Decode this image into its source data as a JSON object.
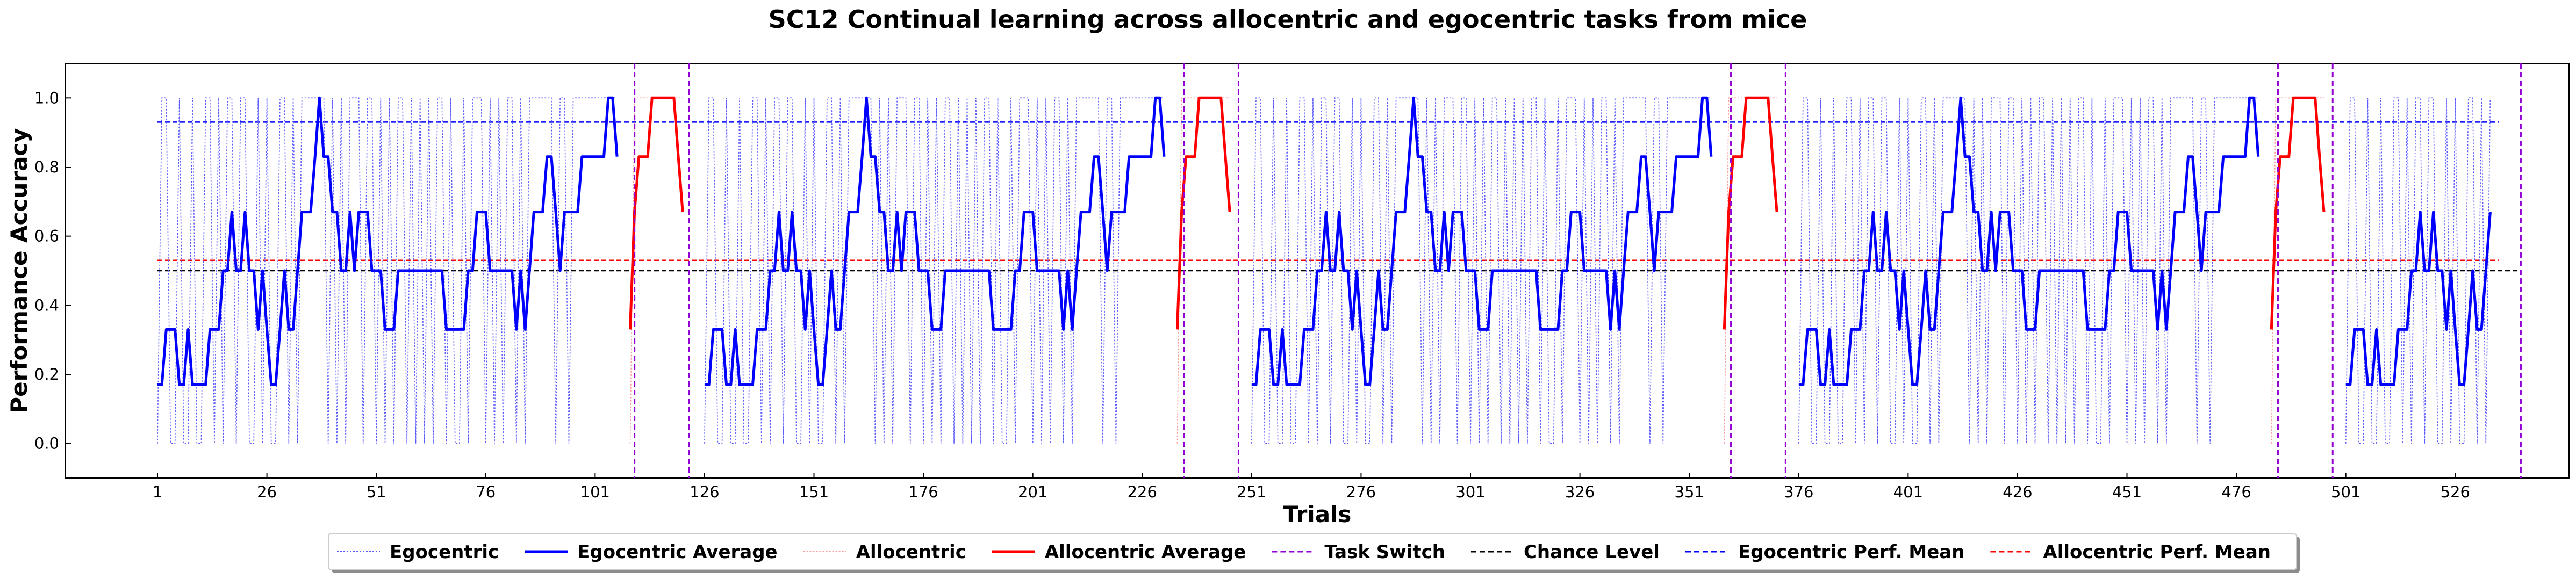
{
  "chart_data": {
    "type": "line",
    "title": "SC12 Continual learning across allocentric and egocentric tasks from mice",
    "xlabel": "Trials",
    "ylabel": "Performance Accuracy",
    "xlim": [
      -20,
      552
    ],
    "ylim": [
      -0.1,
      1.1
    ],
    "xticks": [
      1,
      26,
      51,
      76,
      101,
      126,
      151,
      176,
      201,
      226,
      251,
      276,
      301,
      326,
      351,
      376,
      401,
      426,
      451,
      476,
      501,
      526
    ],
    "yticks": [
      0.0,
      0.2,
      0.4,
      0.6,
      0.8,
      1.0
    ],
    "ytick_labels": [
      "0.0",
      "0.2",
      "0.4",
      "0.6",
      "0.8",
      "1.0"
    ],
    "grid": false,
    "legend_position": "bottom-center",
    "egocentric_blocks": [
      {
        "start": 1,
        "end": 106
      },
      {
        "start": 126,
        "end": 231
      },
      {
        "start": 251,
        "end": 356
      },
      {
        "start": 376,
        "end": 481
      },
      {
        "start": 501,
        "end": 534
      }
    ],
    "allocentric_blocks": [
      {
        "start": 109,
        "end": 121
      },
      {
        "start": 234,
        "end": 246
      },
      {
        "start": 359,
        "end": 371
      },
      {
        "start": 484,
        "end": 496
      }
    ],
    "egocentric_average_template": [
      0.17,
      0.17,
      0.33,
      0.33,
      0.33,
      0.17,
      0.17,
      0.33,
      0.17,
      0.17,
      0.17,
      0.17,
      0.33,
      0.33,
      0.33,
      0.5,
      0.5,
      0.67,
      0.5,
      0.5,
      0.67,
      0.5,
      0.5,
      0.33,
      0.5,
      0.33,
      0.17,
      0.17,
      0.33,
      0.5,
      0.33,
      0.33,
      0.5,
      0.67,
      0.67,
      0.67,
      0.83,
      1.0,
      0.83,
      0.83,
      0.67,
      0.67,
      0.5,
      0.5,
      0.67,
      0.5,
      0.67,
      0.67,
      0.67,
      0.5,
      0.5,
      0.5,
      0.33,
      0.33,
      0.33,
      0.5,
      0.5,
      0.5,
      0.5,
      0.5,
      0.5,
      0.5,
      0.5,
      0.5,
      0.5,
      0.5,
      0.33,
      0.33,
      0.33,
      0.33,
      0.33,
      0.5,
      0.5,
      0.67,
      0.67,
      0.67,
      0.5,
      0.5,
      0.5,
      0.5,
      0.5,
      0.5,
      0.33,
      0.5,
      0.33,
      0.5,
      0.67,
      0.67,
      0.67,
      0.83,
      0.83,
      0.67,
      0.5,
      0.67,
      0.67,
      0.67,
      0.67,
      0.83,
      0.83,
      0.83,
      0.83,
      0.83,
      0.83,
      1.0,
      1.0,
      0.83,
      0.67
    ],
    "egocentric_trials_template": [
      0,
      1,
      1,
      0,
      0,
      1,
      0,
      0,
      1,
      0,
      0,
      1,
      1,
      0,
      1,
      0,
      1,
      1,
      0,
      1,
      1,
      0,
      0,
      1,
      0,
      1,
      0,
      0,
      1,
      1,
      0,
      1,
      0,
      1,
      1,
      1,
      1,
      1,
      1,
      0,
      1,
      0,
      1,
      0,
      1,
      1,
      1,
      0,
      1,
      1,
      0,
      1,
      0,
      1,
      0,
      1,
      1,
      0,
      1,
      0,
      1,
      0,
      1,
      0,
      1,
      1,
      0,
      1,
      0,
      0,
      1,
      0,
      1,
      1,
      1,
      0,
      1,
      0,
      1,
      0,
      1,
      1,
      0,
      1,
      0,
      1,
      1,
      1,
      1,
      1,
      1,
      0,
      1,
      1,
      0,
      1,
      1,
      1,
      1,
      1,
      1,
      1,
      1,
      1,
      1,
      1,
      1
    ],
    "allocentric_average_template": [
      0.33,
      0.67,
      0.83,
      0.83,
      0.83,
      1.0,
      1.0,
      1.0,
      1.0,
      1.0,
      1.0,
      0.83,
      0.67
    ],
    "allocentric_trials_template": [
      0,
      1,
      1,
      1,
      1,
      1,
      1,
      1,
      1,
      1,
      1,
      1,
      1
    ],
    "task_switch_x": [
      110,
      122.5,
      235.5,
      248,
      360.5,
      373,
      485.5,
      498,
      541
    ],
    "chance_level": 0.5,
    "chance_level_range": [
      1,
      541
    ],
    "egocentric_perf_mean": 0.93,
    "egocentric_perf_mean_range": [
      1,
      536
    ],
    "allocentric_perf_mean": 0.53,
    "allocentric_perf_mean_range": [
      1,
      536
    ],
    "colors": {
      "egocentric": "#0000ff",
      "egocentric_trials": "#5b5bff",
      "allocentric": "#ff0000",
      "allocentric_trials": "#ff9a9a",
      "task_switch": "#9400d3",
      "chance": "#000000",
      "ego_mean": "#0000ff",
      "allo_mean": "#ff0000"
    },
    "legend": [
      {
        "label": "Egocentric",
        "style": "ego_trials"
      },
      {
        "label": "Egocentric Average",
        "style": "ego_avg"
      },
      {
        "label": "Allocentric",
        "style": "allo_trials"
      },
      {
        "label": "Allocentric Average",
        "style": "allo_avg"
      },
      {
        "label": "Task Switch",
        "style": "switch"
      },
      {
        "label": "Chance Level",
        "style": "chance"
      },
      {
        "label": "Egocentric Perf. Mean",
        "style": "ego_mean"
      },
      {
        "label": "Allocentric Perf. Mean",
        "style": "allo_mean"
      }
    ]
  }
}
